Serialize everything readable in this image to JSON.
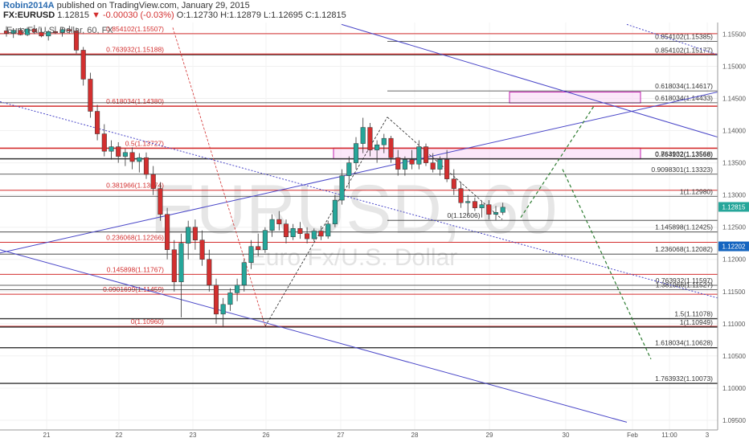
{
  "header": {
    "author": "Robin2014A",
    "published": "published on TradingView.com, January 29, 2015",
    "symbol": "FX:EURUSD",
    "last": "1.12815",
    "change": "▼ -0.00030 (-0.03%)",
    "open": "O:1.12730",
    "high": "H:1.12879",
    "low": "L:1.12695",
    "close": "C:1.12815"
  },
  "series_label": "Euro Fx/U.S. Dollar, 60, FX",
  "watermark": {
    "symbol": "EURUSD, 60",
    "name": "Euro Fx/U.S. Dollar"
  },
  "colors": {
    "up": "#26a69a",
    "down": "#d32f2f",
    "fib_left": "#d32f2f",
    "fib_right": "#333333",
    "channel": "#4a47c8",
    "forecast": "#2e7d32",
    "zone_fill": "#f8d7f5",
    "zone_stroke": "#c020b0",
    "axis_text": "#555555"
  },
  "chart_data": {
    "type": "candlestick",
    "x_ticks": [
      "21",
      "22",
      "23",
      "26",
      "27",
      "28",
      "29",
      "30",
      "Feb",
      "11:00",
      "3"
    ],
    "y_ticks": [
      "1.15500",
      "1.15000",
      "1.14500",
      "1.14000",
      "1.13500",
      "1.13000",
      "1.12500",
      "1.12000",
      "1.11500",
      "1.11000",
      "1.10500",
      "1.10000",
      "1.09500"
    ],
    "ylim": [
      1.0935,
      1.1568
    ],
    "price_markers": [
      {
        "label": "1.12815",
        "value": 1.12815,
        "color": "#26a69a"
      },
      {
        "label": "1.12202",
        "value": 1.12202,
        "color": "#1565c0"
      }
    ],
    "fib_left": {
      "levels": [
        {
          "label": "0.854102(1.15507)",
          "value": 1.15507
        },
        {
          "label": "0.763932(1.15188)",
          "value": 1.15188
        },
        {
          "label": "0.618034(1.14380)",
          "value": 1.1438
        },
        {
          "label": "0.5(1.13727)",
          "value": 1.13727
        },
        {
          "label": "0.381966(1.13074)",
          "value": 1.13074
        },
        {
          "label": "0.236068(1.12266)",
          "value": 1.12266
        },
        {
          "label": "0.145898(1.11767)",
          "value": 1.11767
        },
        {
          "label": "0.0901699(1.11459)",
          "value": 1.11459
        },
        {
          "label": "0(1.10960)",
          "value": 1.1096
        }
      ]
    },
    "fib_right": {
      "levels": [
        {
          "label": "0.854102(1.15385)",
          "value": 1.15385
        },
        {
          "label": "0.618034(1.14617)",
          "value": 1.14617
        },
        {
          "label": "0.854102(1.15177)",
          "value": 1.15177
        },
        {
          "label": "0.618034(1.14433)",
          "value": 1.14433
        },
        {
          "label": "0.763932(1.13566)",
          "value": 1.13566
        },
        {
          "label": "0.854102(1.13558)",
          "value": 1.13558
        },
        {
          "label": "0.9098301(1.13323)",
          "value": 1.13323
        },
        {
          "label": "1(1.12980)",
          "value": 1.1298
        },
        {
          "label": "0(1.12606)",
          "value": 1.12606
        },
        {
          "label": "1.145898(1.12425)",
          "value": 1.12425
        },
        {
          "label": "1.236068(1.12082)",
          "value": 1.12082
        },
        {
          "label": "0.763932(1.11597)",
          "value": 1.11597
        },
        {
          "label": "1.381966(1.11527)",
          "value": 1.11527
        },
        {
          "label": "1.5(1.11078)",
          "value": 1.11078
        },
        {
          "label": "1(1.10949)",
          "value": 1.10949
        },
        {
          "label": "1.618034(1.10628)",
          "value": 1.10628
        },
        {
          "label": "1.763932(1.10073)",
          "value": 1.10073
        }
      ]
    },
    "zones": [
      {
        "from": 1.1356,
        "to": 1.1373
      },
      {
        "from": 1.1443,
        "to": 1.146
      }
    ],
    "candles": [
      [
        1.1555,
        1.1562,
        1.1546,
        1.1551
      ],
      [
        1.1551,
        1.1558,
        1.1544,
        1.1556
      ],
      [
        1.1556,
        1.156,
        1.1548,
        1.1549
      ],
      [
        1.1549,
        1.1561,
        1.1547,
        1.1558
      ],
      [
        1.1558,
        1.1564,
        1.155,
        1.1553
      ],
      [
        1.1553,
        1.1559,
        1.1545,
        1.1547
      ],
      [
        1.1547,
        1.1556,
        1.154,
        1.1554
      ],
      [
        1.1554,
        1.1562,
        1.155,
        1.1552
      ],
      [
        1.1552,
        1.156,
        1.1546,
        1.1557
      ],
      [
        1.1557,
        1.1563,
        1.1551,
        1.1555
      ],
      [
        1.1555,
        1.156,
        1.152,
        1.1525
      ],
      [
        1.1525,
        1.153,
        1.147,
        1.148
      ],
      [
        1.148,
        1.149,
        1.142,
        1.143
      ],
      [
        1.143,
        1.144,
        1.1385,
        1.1395
      ],
      [
        1.1395,
        1.141,
        1.136,
        1.1368
      ],
      [
        1.1368,
        1.1385,
        1.1355,
        1.1375
      ],
      [
        1.1375,
        1.1382,
        1.135,
        1.136
      ],
      [
        1.136,
        1.1372,
        1.1345,
        1.1366
      ],
      [
        1.1366,
        1.1374,
        1.134,
        1.1352
      ],
      [
        1.1352,
        1.1365,
        1.1335,
        1.1358
      ],
      [
        1.1358,
        1.1366,
        1.1325,
        1.1332
      ],
      [
        1.1332,
        1.1345,
        1.13,
        1.131
      ],
      [
        1.131,
        1.132,
        1.126,
        1.127
      ],
      [
        1.127,
        1.128,
        1.12,
        1.1215
      ],
      [
        1.1215,
        1.123,
        1.115,
        1.1165
      ],
      [
        1.1165,
        1.124,
        1.111,
        1.1225
      ],
      [
        1.1225,
        1.126,
        1.12,
        1.125
      ],
      [
        1.125,
        1.1262,
        1.1215,
        1.123
      ],
      [
        1.123,
        1.1245,
        1.119,
        1.12
      ],
      [
        1.12,
        1.1215,
        1.115,
        1.116
      ],
      [
        1.116,
        1.117,
        1.11,
        1.1115
      ],
      [
        1.1115,
        1.114,
        1.1096,
        1.113
      ],
      [
        1.113,
        1.1155,
        1.112,
        1.1148
      ],
      [
        1.1148,
        1.117,
        1.1135,
        1.116
      ],
      [
        1.116,
        1.12,
        1.115,
        1.1195
      ],
      [
        1.1195,
        1.123,
        1.1185,
        1.122
      ],
      [
        1.122,
        1.124,
        1.1205,
        1.1215
      ],
      [
        1.1215,
        1.125,
        1.121,
        1.1245
      ],
      [
        1.1245,
        1.127,
        1.1235,
        1.1262
      ],
      [
        1.1262,
        1.1275,
        1.1245,
        1.1255
      ],
      [
        1.1255,
        1.1262,
        1.1225,
        1.1235
      ],
      [
        1.1235,
        1.1255,
        1.123,
        1.1248
      ],
      [
        1.1248,
        1.1258,
        1.1232,
        1.124
      ],
      [
        1.124,
        1.125,
        1.1225,
        1.1232
      ],
      [
        1.1232,
        1.1248,
        1.1228,
        1.1244
      ],
      [
        1.1244,
        1.1252,
        1.123,
        1.1236
      ],
      [
        1.1236,
        1.126,
        1.1232,
        1.1255
      ],
      [
        1.1255,
        1.13,
        1.125,
        1.1292
      ],
      [
        1.1292,
        1.134,
        1.1285,
        1.133
      ],
      [
        1.133,
        1.136,
        1.131,
        1.135
      ],
      [
        1.135,
        1.139,
        1.134,
        1.138
      ],
      [
        1.138,
        1.142,
        1.1365,
        1.1405
      ],
      [
        1.1405,
        1.1412,
        1.136,
        1.137
      ],
      [
        1.137,
        1.1385,
        1.135,
        1.1378
      ],
      [
        1.1378,
        1.1395,
        1.1365,
        1.1388
      ],
      [
        1.1388,
        1.1392,
        1.135,
        1.1358
      ],
      [
        1.1358,
        1.137,
        1.133,
        1.134
      ],
      [
        1.134,
        1.136,
        1.133,
        1.1355
      ],
      [
        1.1355,
        1.137,
        1.134,
        1.1348
      ],
      [
        1.1348,
        1.1385,
        1.134,
        1.1375
      ],
      [
        1.1375,
        1.138,
        1.1345,
        1.135
      ],
      [
        1.135,
        1.1365,
        1.1335,
        1.134
      ],
      [
        1.134,
        1.136,
        1.133,
        1.1355
      ],
      [
        1.1355,
        1.137,
        1.132,
        1.1325
      ],
      [
        1.1325,
        1.134,
        1.13,
        1.131
      ],
      [
        1.131,
        1.132,
        1.128,
        1.1288
      ],
      [
        1.1288,
        1.13,
        1.127,
        1.129
      ],
      [
        1.129,
        1.1296,
        1.1275,
        1.128
      ],
      [
        1.128,
        1.129,
        1.1265,
        1.1285
      ],
      [
        1.1285,
        1.1292,
        1.1262,
        1.127
      ],
      [
        1.127,
        1.1283,
        1.1261,
        1.1273
      ],
      [
        1.1273,
        1.1288,
        1.1269,
        1.1281
      ]
    ]
  }
}
